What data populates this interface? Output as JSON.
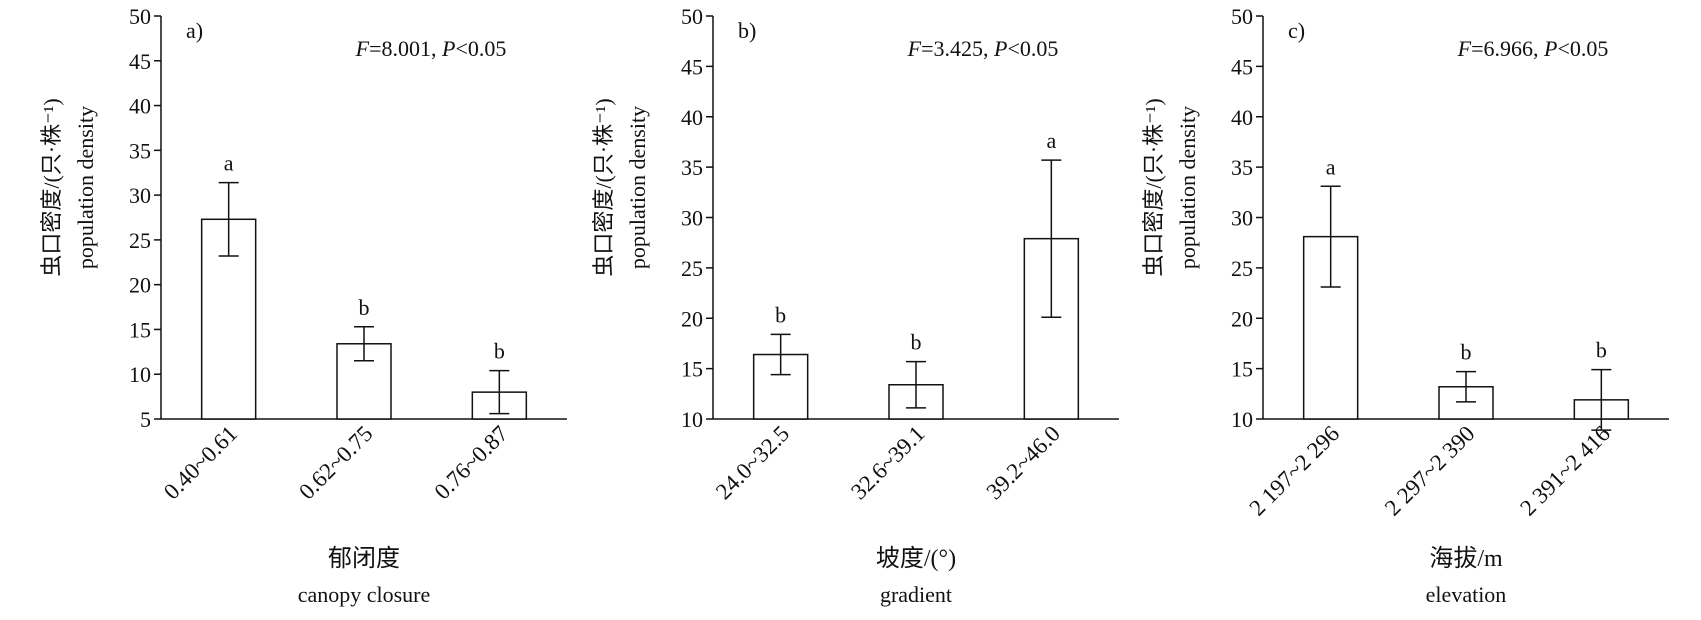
{
  "chart_data": [
    {
      "type": "bar",
      "panel_label": "a)",
      "stat": [
        "F",
        "=8.001, ",
        "P",
        "<0.05"
      ],
      "ylabel": [
        "虫口密度/(只·株⁻¹)",
        "population density"
      ],
      "xlabel": [
        "郁闭度",
        "canopy closure"
      ],
      "categories": [
        "0.40~0.61",
        "0.62~0.75",
        "0.76~0.87"
      ],
      "values": [
        27.3,
        13.4,
        8.0
      ],
      "errors": [
        4.1,
        1.9,
        2.4
      ],
      "letters": [
        "a",
        "b",
        "b"
      ],
      "color": "#ffffff",
      "ylim": [
        5,
        50
      ],
      "yticks": [
        5,
        10,
        15,
        20,
        25,
        30,
        35,
        40,
        45,
        50
      ]
    },
    {
      "type": "bar",
      "panel_label": "b)",
      "stat": [
        "F",
        "=3.425, ",
        "P",
        "<0.05"
      ],
      "ylabel": [
        "虫口密度/(只·株⁻¹)",
        "population density"
      ],
      "xlabel": [
        "坡度/(°)",
        "gradient"
      ],
      "categories": [
        "24.0~32.5",
        "32.6~39.1",
        "39.2~46.0"
      ],
      "values": [
        16.4,
        13.4,
        27.9
      ],
      "errors": [
        2.0,
        2.3,
        7.8
      ],
      "letters": [
        "b",
        "b",
        "a"
      ],
      "color": "#ffffff",
      "ylim": [
        10,
        50
      ],
      "yticks": [
        10,
        15,
        20,
        25,
        30,
        35,
        40,
        45,
        50
      ]
    },
    {
      "type": "bar",
      "panel_label": "c)",
      "stat": [
        "F",
        "=6.966, ",
        "P",
        "<0.05"
      ],
      "ylabel": [
        "虫口密度/(只·株⁻¹)",
        "population density"
      ],
      "xlabel": [
        "海拔/m",
        "elevation"
      ],
      "categories": [
        "2 197~2 296",
        "2 297~2 390",
        "2 391~2 416"
      ],
      "values": [
        28.1,
        13.2,
        11.9
      ],
      "errors": [
        5.0,
        1.5,
        3.0
      ],
      "letters": [
        "a",
        "b",
        "b"
      ],
      "color": "#ffffff",
      "ylim": [
        10,
        50
      ],
      "yticks": [
        10,
        15,
        20,
        25,
        30,
        35,
        40,
        45,
        50
      ]
    }
  ]
}
